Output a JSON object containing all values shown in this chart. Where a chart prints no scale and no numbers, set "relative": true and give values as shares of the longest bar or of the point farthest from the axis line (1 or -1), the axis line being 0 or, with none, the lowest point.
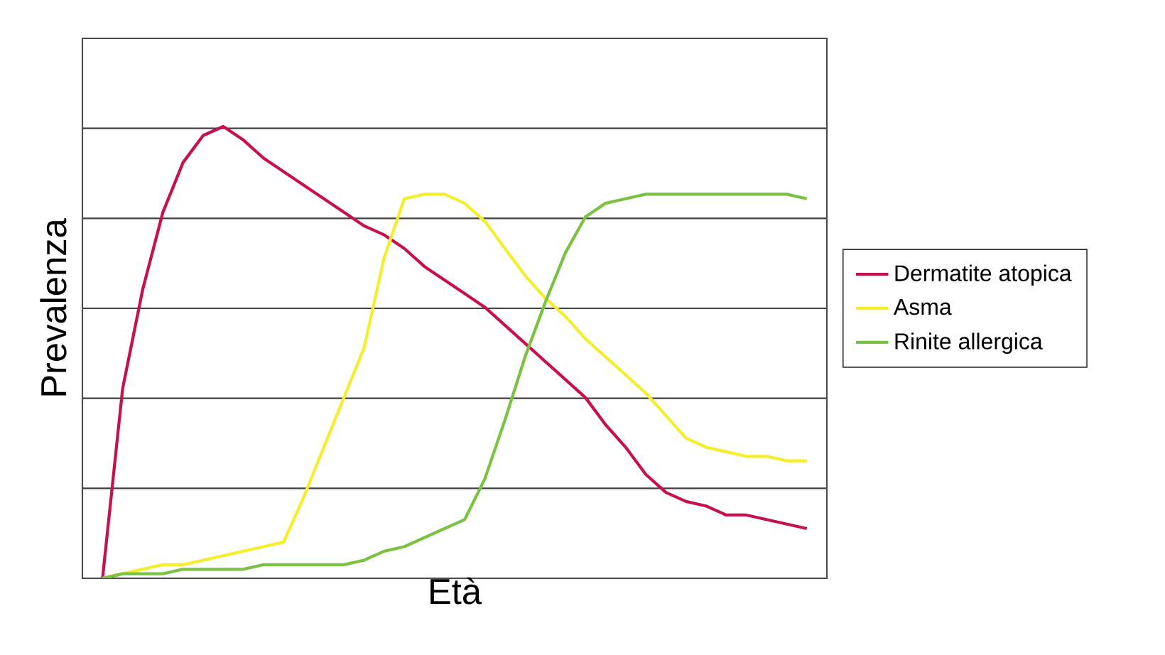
{
  "chart_data": {
    "type": "line",
    "xlabel": "Età",
    "ylabel": "Prevalenza",
    "relative": true,
    "grid": "y",
    "legend": "right",
    "marker": "none",
    "line_style": "solid",
    "categories": [
      null,
      null,
      null,
      null,
      null,
      null,
      null,
      null,
      null,
      null,
      null,
      null,
      null,
      null,
      null,
      null,
      null,
      null,
      null,
      null,
      null,
      null,
      null,
      null,
      null,
      null,
      null,
      null,
      null,
      null,
      null,
      null,
      null,
      null,
      null,
      null
    ],
    "series": [
      {
        "name": "Dermatite atopica",
        "color": "#c8104f",
        "values": [
          0,
          0.42,
          0.64,
          0.81,
          0.92,
          0.98,
          1.0,
          0.97,
          0.93,
          0.9,
          0.87,
          0.84,
          0.81,
          0.78,
          0.76,
          0.73,
          0.69,
          0.66,
          0.63,
          0.6,
          0.56,
          0.52,
          0.48,
          0.44,
          0.4,
          0.34,
          0.29,
          0.23,
          0.19,
          0.17,
          0.16,
          0.14,
          0.14,
          0.13,
          0.12,
          0.11
        ]
      },
      {
        "name": "Asma",
        "color": "#f5ee2a",
        "values": [
          0,
          0.01,
          0.02,
          0.03,
          0.03,
          0.04,
          0.05,
          0.06,
          0.07,
          0.08,
          0.18,
          0.29,
          0.4,
          0.51,
          0.71,
          0.84,
          0.85,
          0.85,
          0.83,
          0.79,
          0.73,
          0.67,
          0.62,
          0.58,
          0.53,
          0.49,
          0.45,
          0.41,
          0.36,
          0.31,
          0.29,
          0.28,
          0.27,
          0.27,
          0.26,
          0.26
        ]
      },
      {
        "name": "Rinite allergica",
        "color": "#7cc242",
        "values": [
          0,
          0.01,
          0.01,
          0.01,
          0.02,
          0.02,
          0.02,
          0.02,
          0.03,
          0.03,
          0.03,
          0.03,
          0.03,
          0.04,
          0.06,
          0.07,
          0.09,
          0.11,
          0.13,
          0.22,
          0.35,
          0.49,
          0.61,
          0.72,
          0.8,
          0.83,
          0.84,
          0.85,
          0.85,
          0.85,
          0.85,
          0.85,
          0.85,
          0.85,
          0.85,
          0.84
        ]
      }
    ]
  }
}
